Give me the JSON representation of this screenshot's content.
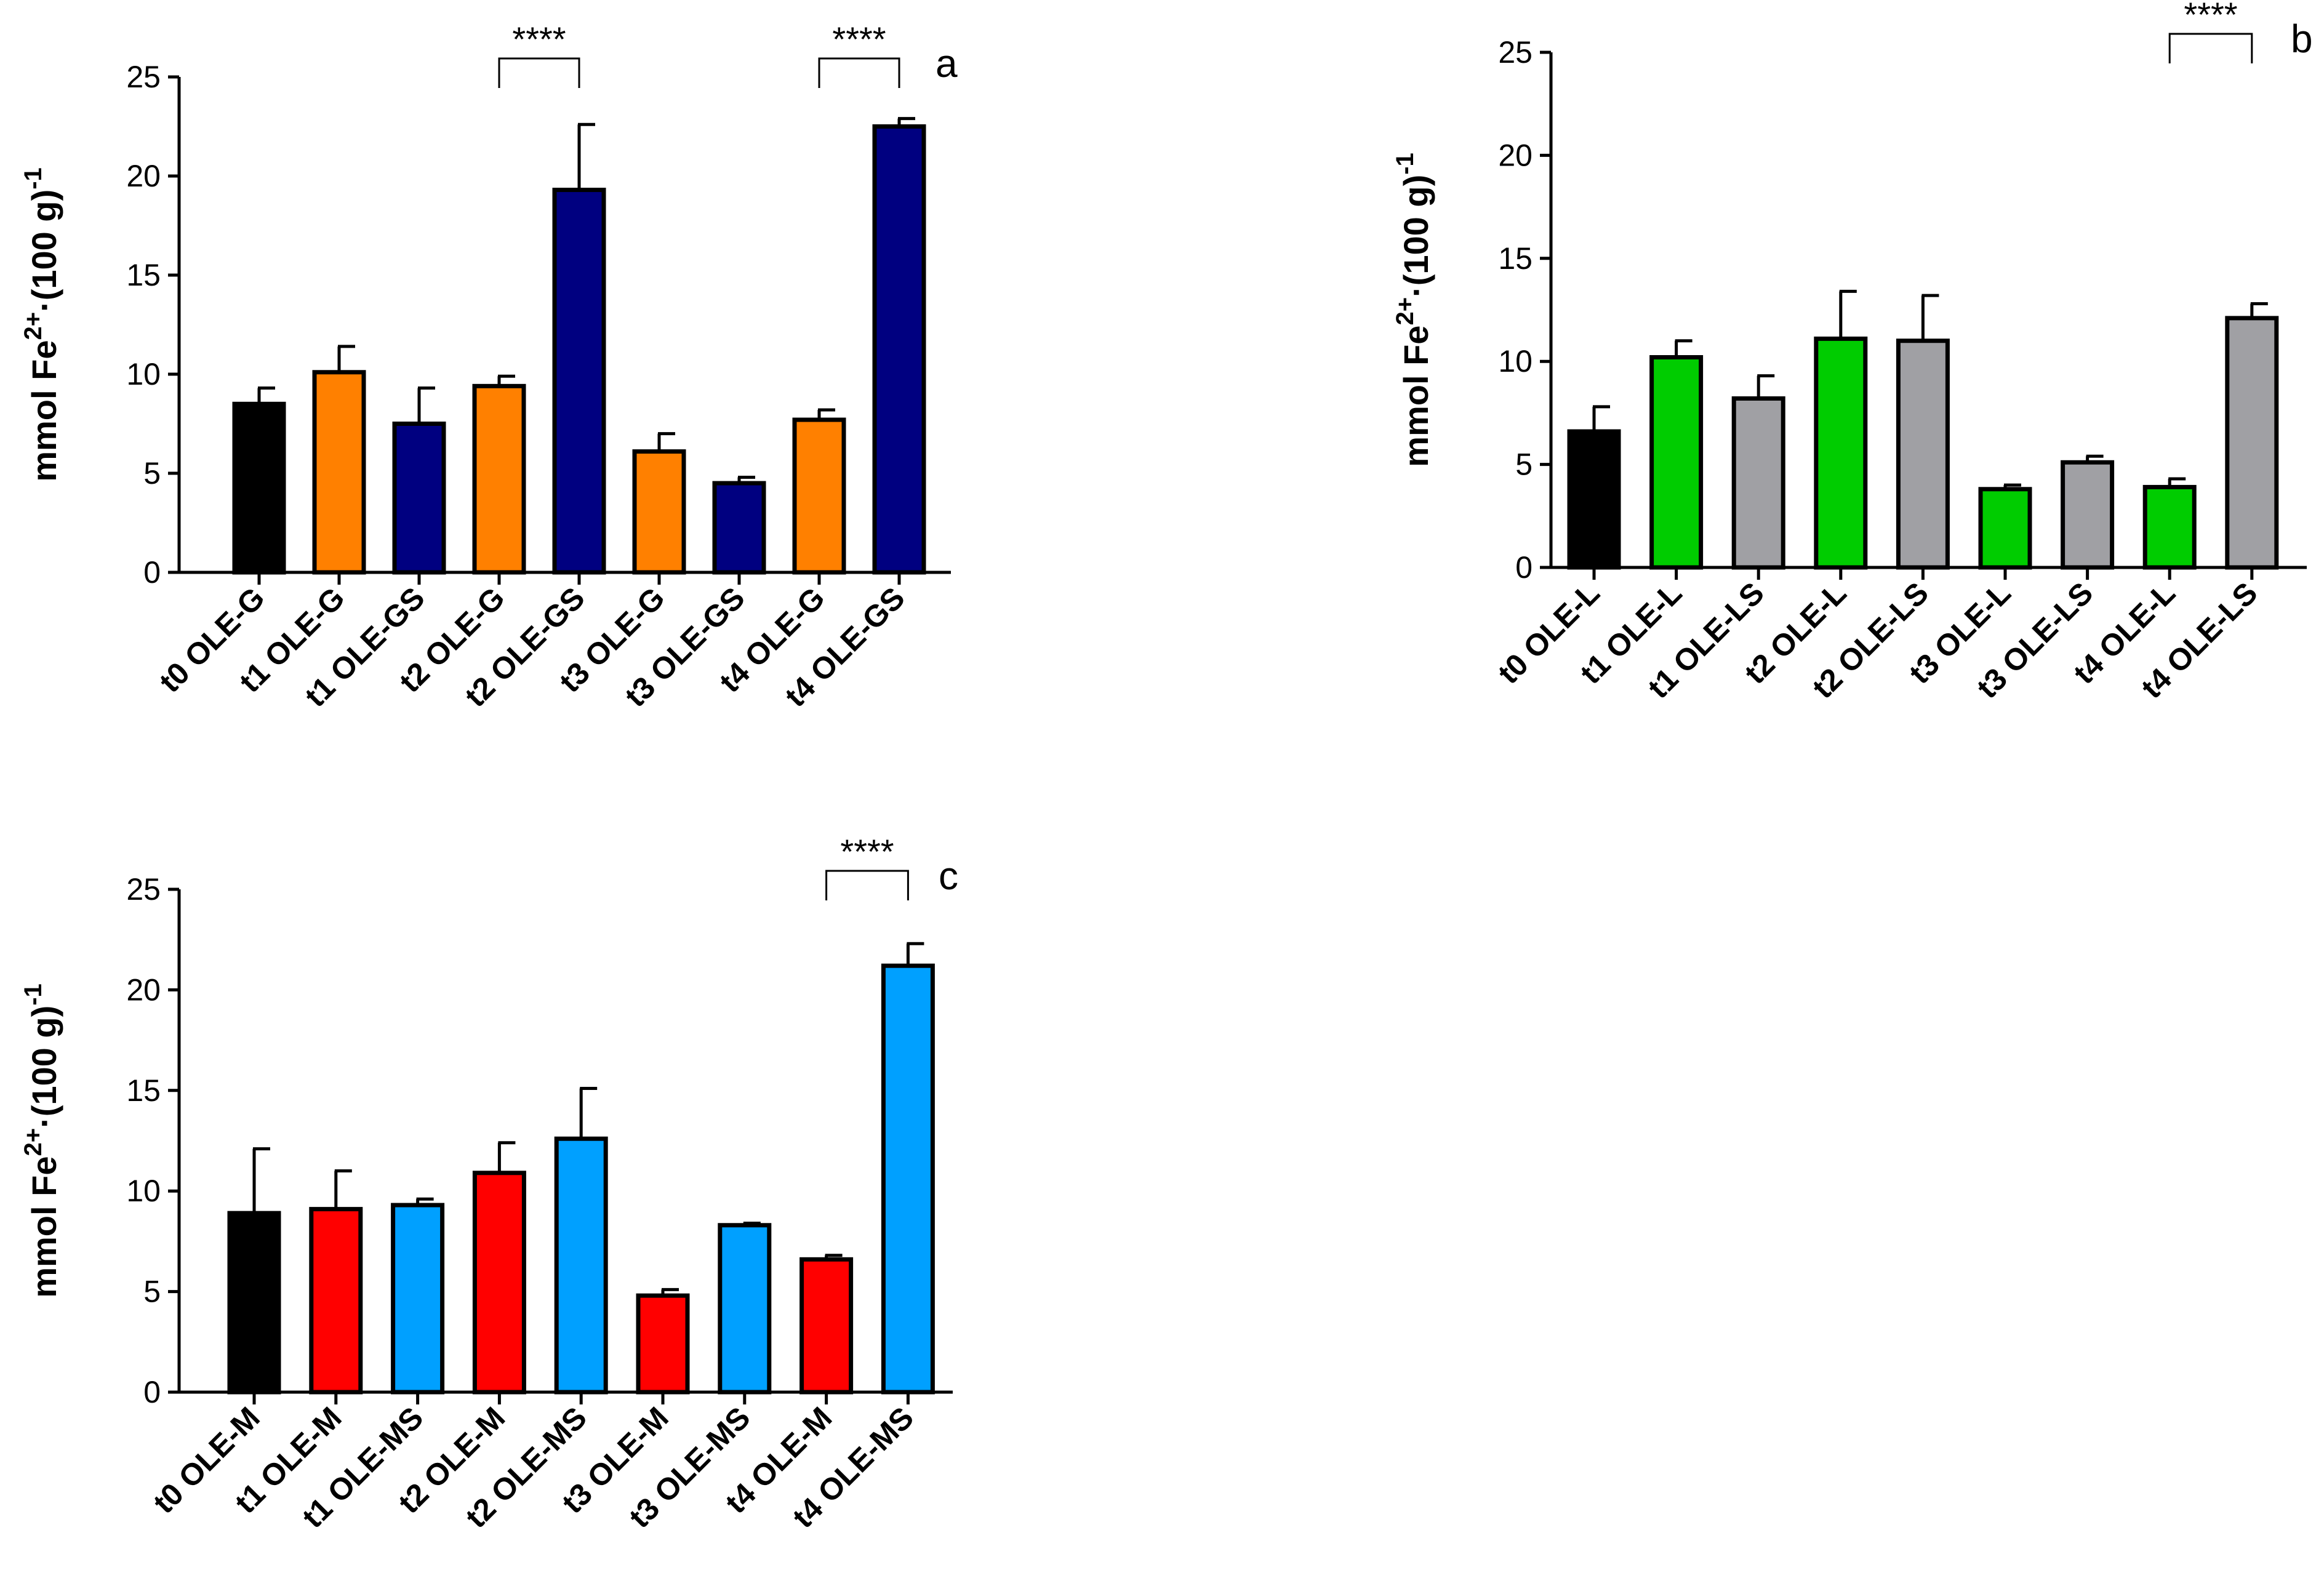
{
  "figure": {
    "y_axis_label": "mmol Fe",
    "y_axis_label_sup": "2+",
    "y_axis_label_unit": "(100 g)",
    "y_axis_label_unit_sup": "-1"
  },
  "chart_data": [
    {
      "id": "a",
      "panel_label": "a",
      "type": "bar",
      "ylim": [
        0,
        25
      ],
      "yticks": [
        0,
        5,
        10,
        15,
        20,
        25
      ],
      "categories": [
        "t0 OLE-G",
        "t1 OLE-G",
        "t1 OLE-GS",
        "t2 OLE-G",
        "t2 OLE-GS",
        "t3 OLE-G",
        "t3 OLE-GS",
        "t4 OLE-G",
        "t4 OLE-GS"
      ],
      "values": [
        8.5,
        10.1,
        7.5,
        9.4,
        19.3,
        6.1,
        4.5,
        7.7,
        22.5
      ],
      "errors": [
        0.8,
        1.3,
        1.8,
        0.5,
        3.3,
        0.9,
        0.3,
        0.5,
        0.4
      ],
      "colors": [
        "#000000",
        "#ff8000",
        "#000080",
        "#ff8000",
        "#000080",
        "#ff8000",
        "#000080",
        "#ff8000",
        "#000080"
      ],
      "significance": [
        {
          "from": 3,
          "to": 4,
          "label": "****"
        },
        {
          "from": 7,
          "to": 8,
          "label": "****"
        }
      ]
    },
    {
      "id": "b",
      "panel_label": "b",
      "type": "bar",
      "ylim": [
        0,
        25
      ],
      "yticks": [
        0,
        5,
        10,
        15,
        20,
        25
      ],
      "categories": [
        "t0 OLE-L",
        "t1 OLE-L",
        "t1 OLE-LS",
        "t2 OLE-L",
        "t2 OLE-LS",
        "t3 OLE-L",
        "t3 OLE-LS",
        "t4 OLE-L",
        "t4 OLE-LS"
      ],
      "values": [
        6.6,
        10.2,
        8.2,
        11.1,
        11.0,
        3.8,
        5.1,
        3.9,
        12.1
      ],
      "errors": [
        1.2,
        0.8,
        1.1,
        2.3,
        2.2,
        0.2,
        0.3,
        0.4,
        0.7
      ],
      "colors": [
        "#000000",
        "#00cc00",
        "#a0a0a4",
        "#00cc00",
        "#a0a0a4",
        "#00cc00",
        "#a0a0a4",
        "#00cc00",
        "#a0a0a4"
      ],
      "significance": [
        {
          "from": 7,
          "to": 8,
          "label": "****"
        }
      ]
    },
    {
      "id": "c",
      "panel_label": "c",
      "type": "bar",
      "ylim": [
        0,
        25
      ],
      "yticks": [
        0,
        5,
        10,
        15,
        20,
        25
      ],
      "categories": [
        "t0 OLE-M",
        "t1 OLE-M",
        "t1 OLE-MS",
        "t2 OLE-M",
        "t2 OLE-MS",
        "t3 OLE-M",
        "t3 OLE-MS",
        "t4 OLE-M",
        "t4 OLE-MS"
      ],
      "values": [
        8.9,
        9.1,
        9.3,
        10.9,
        12.6,
        4.8,
        8.3,
        6.6,
        21.2
      ],
      "errors": [
        3.2,
        1.9,
        0.3,
        1.5,
        2.5,
        0.3,
        0.1,
        0.2,
        1.1
      ],
      "colors": [
        "#000000",
        "#ff0000",
        "#00a0ff",
        "#ff0000",
        "#00a0ff",
        "#ff0000",
        "#00a0ff",
        "#ff0000",
        "#00a0ff"
      ],
      "significance": [
        {
          "from": 7,
          "to": 8,
          "label": "****"
        }
      ]
    }
  ]
}
